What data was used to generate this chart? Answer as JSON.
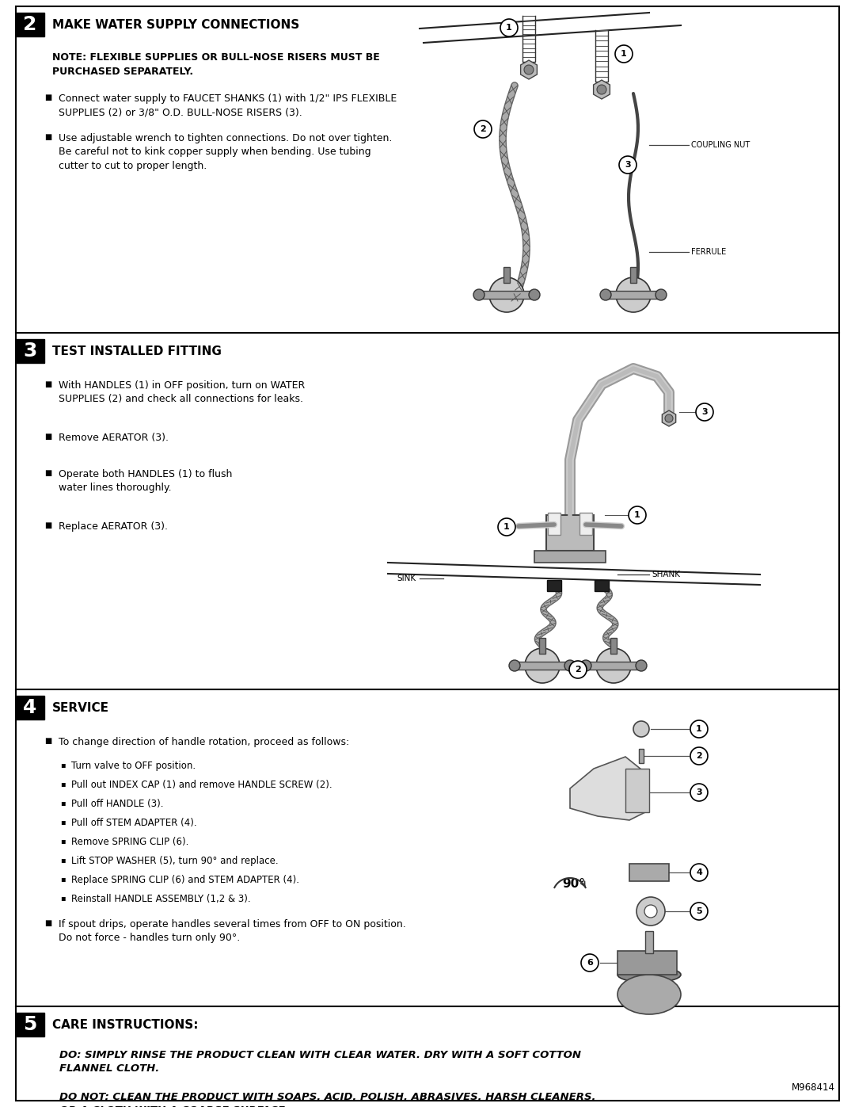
{
  "page_bg": "#ffffff",
  "border_color": "#000000",
  "text_color": "#000000",
  "header_bg": "#000000",
  "header_fg": "#ffffff",
  "s2": {
    "num": "2",
    "title": "MAKE WATER SUPPLY CONNECTIONS",
    "note": "NOTE: FLEXIBLE SUPPLIES OR BULL-NOSE RISERS MUST BE\nPURCHASED SEPARATELY.",
    "bullets": [
      "Connect water supply to FAUCET SHANKS (1) with 1/2\" IPS FLEXIBLE\nSUPPLIES (2) or 3/8\" O.D. BULL-NOSE RISERS (3).",
      "Use adjustable wrench to tighten connections. Do not over tighten.\nBe careful not to kink copper supply when bending. Use tubing\ncutter to cut to proper length."
    ]
  },
  "s3": {
    "num": "3",
    "title": "TEST INSTALLED FITTING",
    "bullets": [
      "With HANDLES (1) in OFF position, turn on WATER\nSUPPLIES (2) and check all connections for leaks.",
      "Remove AERATOR (3).",
      "Operate both HANDLES (1) to flush\nwater lines thoroughly.",
      "Replace AERATOR (3)."
    ]
  },
  "s4": {
    "num": "4",
    "title": "SERVICE",
    "bullet_main": "To change direction of handle rotation, proceed as follows:",
    "sub_bullets": [
      "Turn valve to OFF position.",
      "Pull out INDEX CAP (1) and remove HANDLE SCREW (2).",
      "Pull off HANDLE (3).",
      "Pull off STEM ADAPTER (4).",
      "Remove SPRING CLIP (6).",
      "Lift STOP WASHER (5), turn 90° and replace.",
      "Replace SPRING CLIP (6) and STEM ADAPTER (4).",
      "Reinstall HANDLE ASSEMBLY (1,2 & 3)."
    ],
    "bullet2": "If spout drips, operate handles several times from OFF to ON position.\nDo not force - handles turn only 90°."
  },
  "s5": {
    "num": "5",
    "title": "CARE INSTRUCTIONS:",
    "do_text": "DO: SIMPLY RINSE THE PRODUCT CLEAN WITH CLEAR WATER. DRY WITH A SOFT COTTON\nFLANNEL CLOTH.",
    "donot_text": "DO NOT: CLEAN THE PRODUCT WITH SOAPS, ACID, POLISH, ABRASIVES, HARSH CLEANERS,\nOR A CLOTH WITH A COARSE SURFACE.",
    "model": "M968414"
  }
}
